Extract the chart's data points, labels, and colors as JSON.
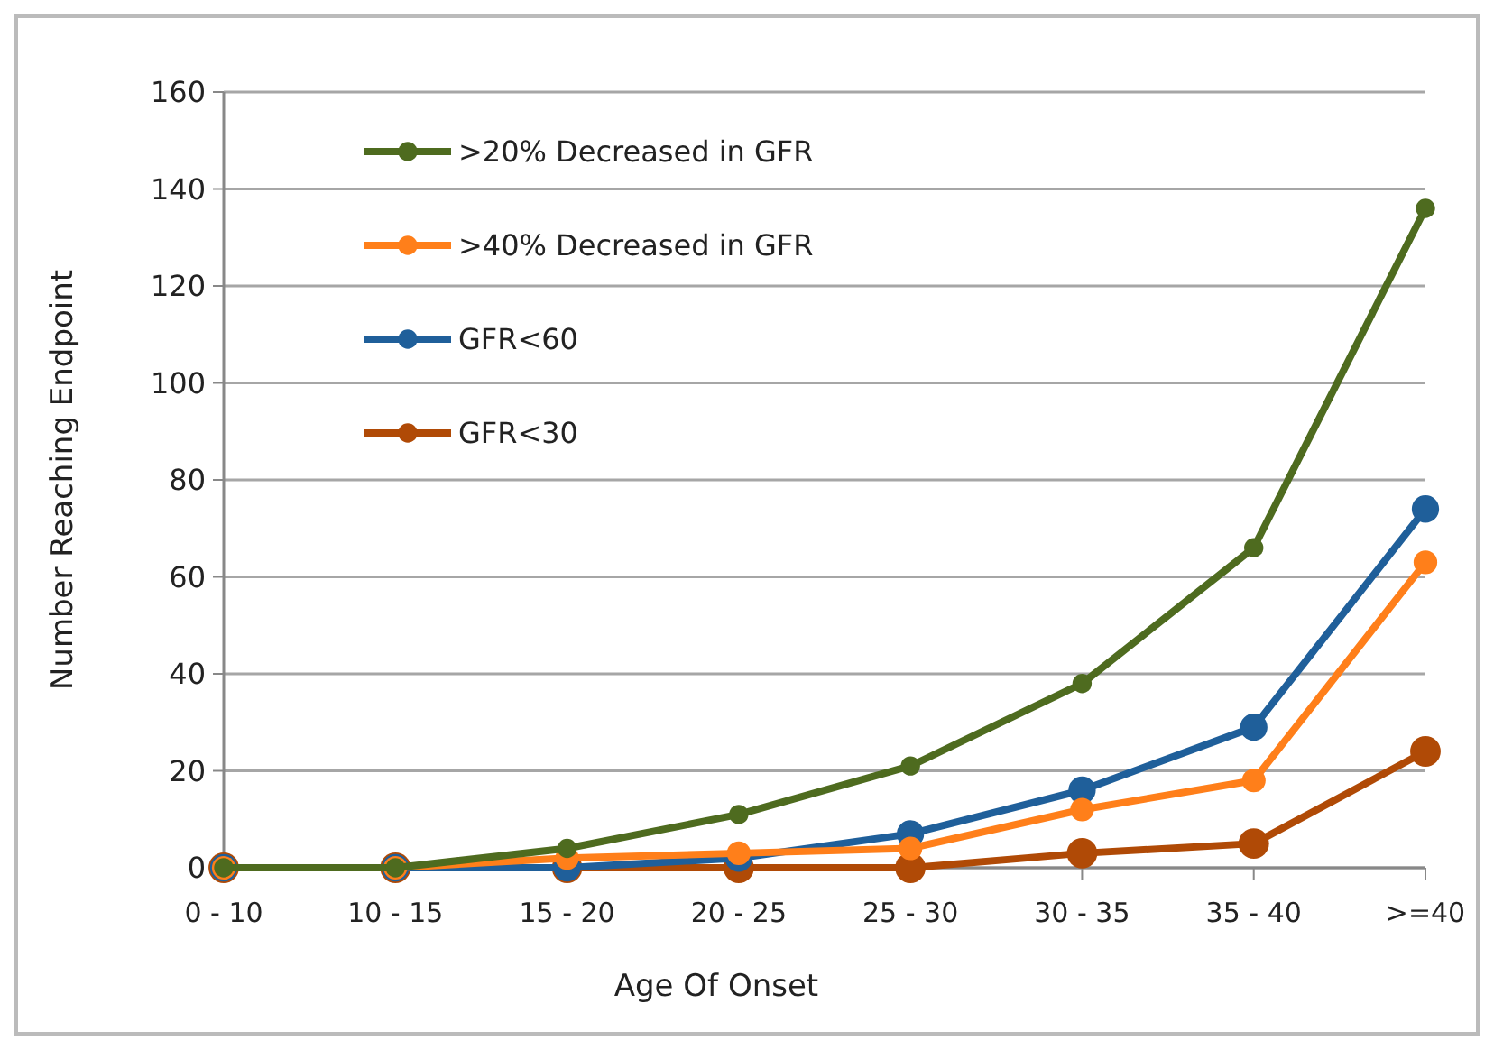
{
  "chart_data": {
    "type": "line",
    "xlabel": "Age Of Onset",
    "ylabel": "Number Reaching Endpoint",
    "categories": [
      "0 - 10",
      "10 - 15",
      "15 - 20",
      "20 - 25",
      "25 - 30",
      "30 - 35",
      "35 - 40",
      ">=40"
    ],
    "series": [
      {
        "name": ">20% Decreased in GFR",
        "color": "#4e6b1f",
        "values": [
          0,
          0,
          4,
          11,
          21,
          38,
          66,
          136
        ]
      },
      {
        "name": ">40% Decreased in GFR",
        "color": "#ff7f1a",
        "values": [
          0,
          0,
          2,
          3,
          4,
          12,
          18,
          63
        ]
      },
      {
        "name": "GFR<60",
        "color": "#1f5f9a",
        "values": [
          0,
          0,
          0,
          2,
          7,
          16,
          29,
          74
        ]
      },
      {
        "name": "GFR<30",
        "color": "#b04a06",
        "values": [
          0,
          0,
          0,
          0,
          0,
          3,
          5,
          24
        ]
      }
    ],
    "ylim": [
      0,
      160
    ],
    "yticks": [
      0,
      20,
      40,
      60,
      80,
      100,
      120,
      140,
      160
    ],
    "grid": "y",
    "legend": "top left",
    "marker": "circle",
    "line_style": "solid"
  }
}
